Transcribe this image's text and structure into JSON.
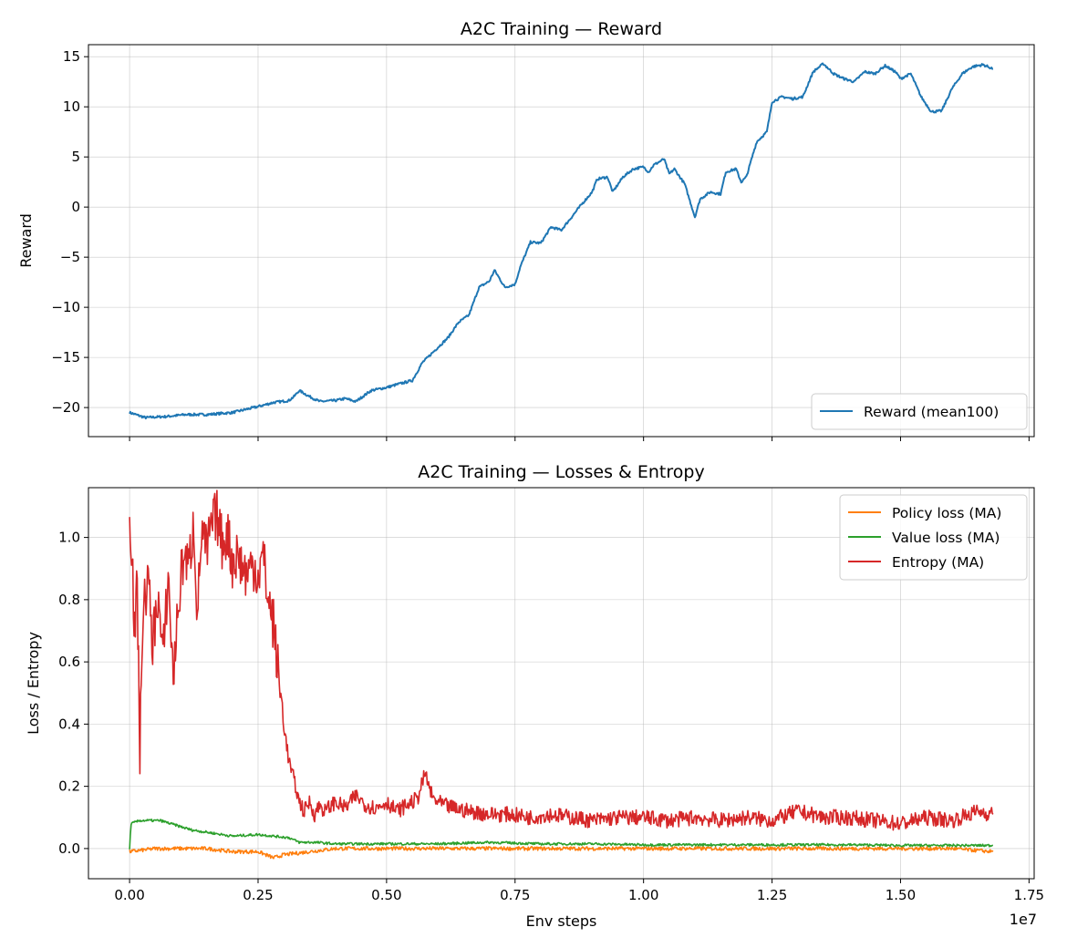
{
  "chart_data": [
    {
      "type": "line",
      "title": "A2C Training — Reward",
      "xlabel": "",
      "ylabel": "Reward",
      "xlim": [
        -800000,
        17600000
      ],
      "ylim": [
        -22.9,
        16.2
      ],
      "xticks": [
        0,
        2500000,
        5000000,
        7500000,
        10000000,
        12500000,
        15000000,
        17500000
      ],
      "yticks": [
        -20,
        -15,
        -10,
        -5,
        0,
        5,
        10,
        15
      ],
      "ytick_labels": [
        "−20",
        "−15",
        "−10",
        "−5",
        "0",
        "5",
        "10",
        "15"
      ],
      "grid": true,
      "legend_position": "lower-right",
      "series": [
        {
          "name": "Reward (mean100)",
          "color": "#1f77b4",
          "points": [
            [
              0,
              -20.5
            ],
            [
              300000,
              -21.0
            ],
            [
              700000,
              -20.9
            ],
            [
              1100000,
              -20.7
            ],
            [
              1500000,
              -20.7
            ],
            [
              2000000,
              -20.5
            ],
            [
              2500000,
              -19.9
            ],
            [
              2800000,
              -19.5
            ],
            [
              3100000,
              -19.3
            ],
            [
              3200000,
              -18.9
            ],
            [
              3300000,
              -18.3
            ],
            [
              3500000,
              -18.9
            ],
            [
              3700000,
              -19.4
            ],
            [
              4000000,
              -19.3
            ],
            [
              4200000,
              -19.1
            ],
            [
              4400000,
              -19.4
            ],
            [
              4700000,
              -18.3
            ],
            [
              5000000,
              -18.0
            ],
            [
              5200000,
              -17.7
            ],
            [
              5500000,
              -17.3
            ],
            [
              5700000,
              -15.5
            ],
            [
              6000000,
              -14.0
            ],
            [
              6200000,
              -13.0
            ],
            [
              6400000,
              -11.5
            ],
            [
              6600000,
              -10.8
            ],
            [
              6800000,
              -8.0
            ],
            [
              7000000,
              -7.4
            ],
            [
              7100000,
              -6.3
            ],
            [
              7300000,
              -8.0
            ],
            [
              7500000,
              -7.7
            ],
            [
              7600000,
              -6.0
            ],
            [
              7800000,
              -3.5
            ],
            [
              8000000,
              -3.6
            ],
            [
              8200000,
              -2.0
            ],
            [
              8400000,
              -2.3
            ],
            [
              8600000,
              -1.0
            ],
            [
              8800000,
              0.3
            ],
            [
              9000000,
              1.5
            ],
            [
              9100000,
              2.8
            ],
            [
              9300000,
              3.0
            ],
            [
              9400000,
              1.5
            ],
            [
              9600000,
              3.0
            ],
            [
              9800000,
              3.8
            ],
            [
              10000000,
              4.0
            ],
            [
              10100000,
              3.5
            ],
            [
              10200000,
              4.2
            ],
            [
              10400000,
              4.8
            ],
            [
              10500000,
              3.3
            ],
            [
              10600000,
              3.8
            ],
            [
              10800000,
              2.3
            ],
            [
              11000000,
              -1.0
            ],
            [
              11100000,
              0.8
            ],
            [
              11300000,
              1.5
            ],
            [
              11500000,
              1.3
            ],
            [
              11600000,
              3.5
            ],
            [
              11800000,
              3.8
            ],
            [
              11900000,
              2.5
            ],
            [
              12000000,
              3.0
            ],
            [
              12200000,
              6.5
            ],
            [
              12400000,
              7.5
            ],
            [
              12500000,
              10.5
            ],
            [
              12700000,
              11.0
            ],
            [
              12900000,
              10.8
            ],
            [
              13100000,
              11.0
            ],
            [
              13300000,
              13.5
            ],
            [
              13500000,
              14.3
            ],
            [
              13700000,
              13.3
            ],
            [
              13900000,
              12.8
            ],
            [
              14100000,
              12.5
            ],
            [
              14300000,
              13.5
            ],
            [
              14500000,
              13.3
            ],
            [
              14700000,
              14.1
            ],
            [
              14900000,
              13.5
            ],
            [
              15000000,
              12.8
            ],
            [
              15200000,
              13.3
            ],
            [
              15400000,
              11.0
            ],
            [
              15600000,
              9.5
            ],
            [
              15800000,
              9.6
            ],
            [
              16000000,
              11.8
            ],
            [
              16200000,
              13.3
            ],
            [
              16400000,
              14.0
            ],
            [
              16600000,
              14.2
            ],
            [
              16800000,
              13.8
            ]
          ]
        }
      ]
    },
    {
      "type": "line",
      "title": "A2C Training — Losses & Entropy",
      "xlabel": "Env steps",
      "ylabel": "Loss / Entropy",
      "x_offset_label": "1e7",
      "xlim": [
        -800000,
        17600000
      ],
      "ylim": [
        -0.097,
        1.16
      ],
      "xticks": [
        0,
        2500000,
        5000000,
        7500000,
        10000000,
        12500000,
        15000000,
        17500000
      ],
      "xtick_labels": [
        "0.00",
        "0.25",
        "0.50",
        "0.75",
        "1.00",
        "1.25",
        "1.50",
        "1.75"
      ],
      "yticks": [
        0.0,
        0.2,
        0.4,
        0.6,
        0.8,
        1.0
      ],
      "ytick_labels": [
        "0.0",
        "0.2",
        "0.4",
        "0.6",
        "0.8",
        "1.0"
      ],
      "grid": true,
      "legend_position": "upper-right",
      "series": [
        {
          "name": "Policy loss (MA)",
          "color": "#ff7f0e",
          "points": [
            [
              0,
              -0.01
            ],
            [
              500000,
              0.0
            ],
            [
              1000000,
              0.0
            ],
            [
              1500000,
              0.0
            ],
            [
              2000000,
              -0.01
            ],
            [
              2500000,
              -0.01
            ],
            [
              2800000,
              -0.03
            ],
            [
              3000000,
              -0.02
            ],
            [
              3500000,
              -0.01
            ],
            [
              4000000,
              0.0
            ],
            [
              5000000,
              0.0
            ],
            [
              6000000,
              0.0
            ],
            [
              7000000,
              0.0
            ],
            [
              8000000,
              0.0
            ],
            [
              9000000,
              0.0
            ],
            [
              10000000,
              0.0
            ],
            [
              11000000,
              0.0
            ],
            [
              12000000,
              0.0
            ],
            [
              13000000,
              0.0
            ],
            [
              14000000,
              0.0
            ],
            [
              15000000,
              0.0
            ],
            [
              16000000,
              0.0
            ],
            [
              16800000,
              -0.01
            ]
          ]
        },
        {
          "name": "Value loss (MA)",
          "color": "#2ca02c",
          "points": [
            [
              0,
              0.0
            ],
            [
              30000,
              0.08
            ],
            [
              200000,
              0.09
            ],
            [
              600000,
              0.09
            ],
            [
              800000,
              0.08
            ],
            [
              1200000,
              0.06
            ],
            [
              1600000,
              0.05
            ],
            [
              2000000,
              0.04
            ],
            [
              2500000,
              0.045
            ],
            [
              2800000,
              0.04
            ],
            [
              3100000,
              0.035
            ],
            [
              3300000,
              0.02
            ],
            [
              3600000,
              0.02
            ],
            [
              4000000,
              0.015
            ],
            [
              5000000,
              0.015
            ],
            [
              6000000,
              0.015
            ],
            [
              7000000,
              0.02
            ],
            [
              8000000,
              0.015
            ],
            [
              9000000,
              0.015
            ],
            [
              10000000,
              0.012
            ],
            [
              11000000,
              0.012
            ],
            [
              12000000,
              0.012
            ],
            [
              13000000,
              0.012
            ],
            [
              14000000,
              0.012
            ],
            [
              15000000,
              0.01
            ],
            [
              16000000,
              0.01
            ],
            [
              16800000,
              0.01
            ]
          ]
        },
        {
          "name": "Entropy (MA)",
          "color": "#d62728",
          "points": [
            [
              0,
              1.09
            ],
            [
              50000,
              0.95
            ],
            [
              100000,
              0.68
            ],
            [
              150000,
              0.85
            ],
            [
              200000,
              0.31
            ],
            [
              250000,
              0.72
            ],
            [
              350000,
              0.88
            ],
            [
              450000,
              0.66
            ],
            [
              550000,
              0.82
            ],
            [
              650000,
              0.6
            ],
            [
              750000,
              0.88
            ],
            [
              850000,
              0.55
            ],
            [
              950000,
              0.78
            ],
            [
              1050000,
              0.95
            ],
            [
              1150000,
              0.9
            ],
            [
              1250000,
              1.05
            ],
            [
              1320000,
              0.75
            ],
            [
              1400000,
              1.02
            ],
            [
              1500000,
              0.95
            ],
            [
              1600000,
              1.04
            ],
            [
              1700000,
              1.07
            ],
            [
              1800000,
              0.98
            ],
            [
              1900000,
              1.02
            ],
            [
              2000000,
              0.92
            ],
            [
              2100000,
              0.95
            ],
            [
              2200000,
              0.9
            ],
            [
              2300000,
              0.88
            ],
            [
              2400000,
              0.92
            ],
            [
              2500000,
              0.88
            ],
            [
              2600000,
              0.94
            ],
            [
              2700000,
              0.8
            ],
            [
              2800000,
              0.72
            ],
            [
              2900000,
              0.55
            ],
            [
              3000000,
              0.4
            ],
            [
              3100000,
              0.28
            ],
            [
              3200000,
              0.22
            ],
            [
              3300000,
              0.15
            ],
            [
              3400000,
              0.12
            ],
            [
              3500000,
              0.15
            ],
            [
              3600000,
              0.11
            ],
            [
              3700000,
              0.14
            ],
            [
              3800000,
              0.12
            ],
            [
              4000000,
              0.15
            ],
            [
              4200000,
              0.13
            ],
            [
              4400000,
              0.17
            ],
            [
              4600000,
              0.14
            ],
            [
              4800000,
              0.13
            ],
            [
              5000000,
              0.15
            ],
            [
              5200000,
              0.12
            ],
            [
              5400000,
              0.14
            ],
            [
              5600000,
              0.16
            ],
            [
              5750000,
              0.24
            ],
            [
              5900000,
              0.16
            ],
            [
              6100000,
              0.14
            ],
            [
              6300000,
              0.13
            ],
            [
              6600000,
              0.12
            ],
            [
              7000000,
              0.11
            ],
            [
              7400000,
              0.11
            ],
            [
              7800000,
              0.1
            ],
            [
              8200000,
              0.11
            ],
            [
              8600000,
              0.1
            ],
            [
              9000000,
              0.09
            ],
            [
              9500000,
              0.1
            ],
            [
              10000000,
              0.1
            ],
            [
              10500000,
              0.09
            ],
            [
              11000000,
              0.1
            ],
            [
              11500000,
              0.09
            ],
            [
              12000000,
              0.1
            ],
            [
              12500000,
              0.09
            ],
            [
              13000000,
              0.12
            ],
            [
              13500000,
              0.1
            ],
            [
              14000000,
              0.1
            ],
            [
              14500000,
              0.09
            ],
            [
              15000000,
              0.08
            ],
            [
              15500000,
              0.1
            ],
            [
              16000000,
              0.09
            ],
            [
              16500000,
              0.12
            ],
            [
              16800000,
              0.11
            ]
          ]
        }
      ]
    }
  ]
}
